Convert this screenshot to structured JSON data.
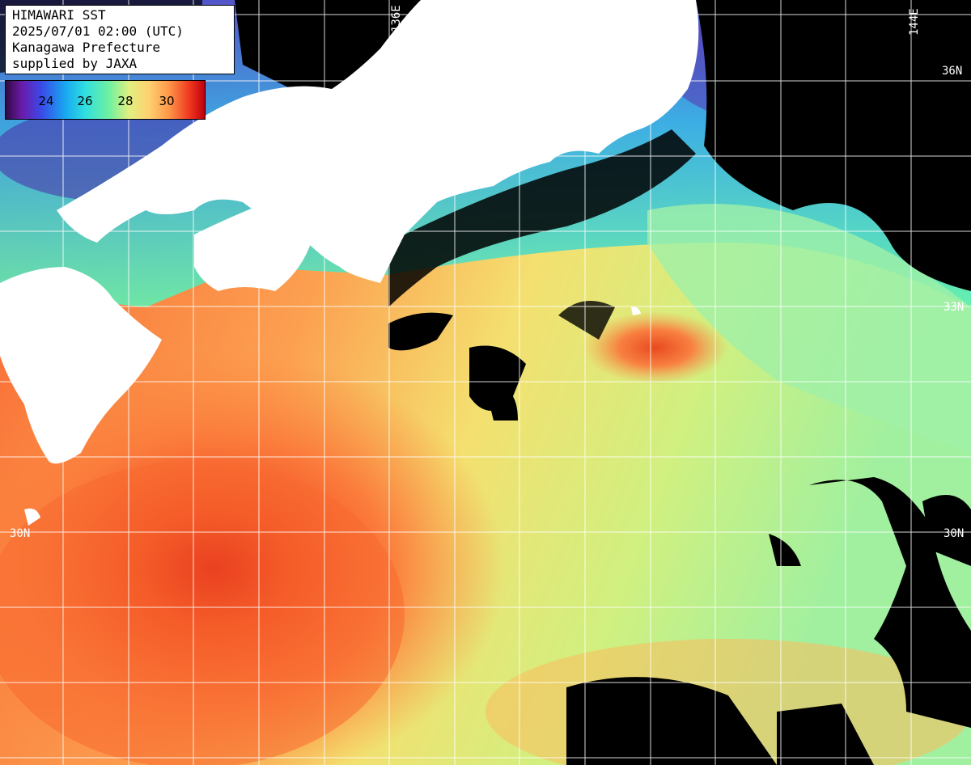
{
  "header": {
    "line1": "HIMAWARI SST",
    "line2": "2025/07/01 02:00 (UTC)",
    "line3": "Kanagawa Prefecture",
    "line4": "supplied by JAXA"
  },
  "legend": {
    "labels": [
      "24",
      "26",
      "28",
      "30"
    ],
    "colors": [
      "#2a0a3a",
      "#5a1aa0",
      "#3a4ae0",
      "#1aa8f0",
      "#30e0e0",
      "#6af0a0",
      "#d8f080",
      "#ffe080",
      "#ffa050",
      "#f04020",
      "#c00010"
    ]
  },
  "grid_labels": {
    "lon_left": "136E",
    "lon_right": "144E",
    "lat_top": "36N",
    "lat_mid": "33N",
    "lat_left_bottom": "30N",
    "lat_right_bottom": "30N"
  },
  "colors": {
    "land": "#ffffff",
    "cloud": "#000000",
    "grid": "#ffffff"
  }
}
